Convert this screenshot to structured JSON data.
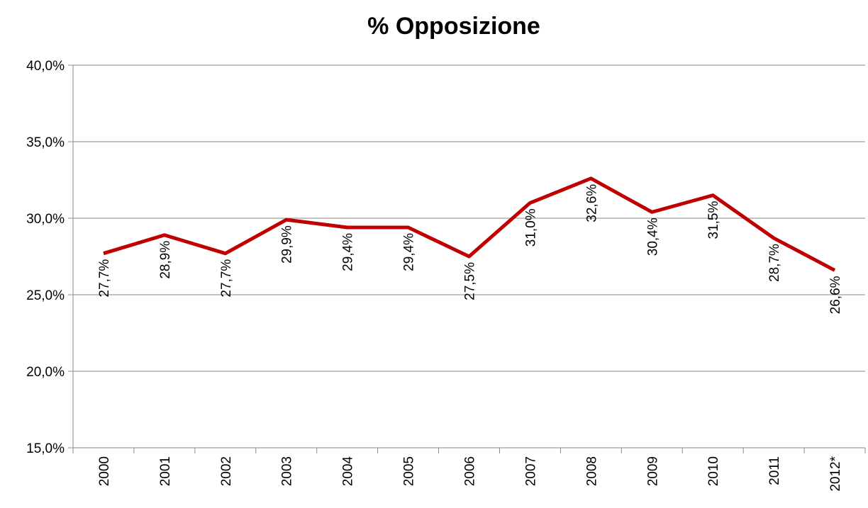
{
  "chart_data": {
    "type": "line",
    "title": "% Opposizione",
    "categories": [
      "2000",
      "2001",
      "2002",
      "2003",
      "2004",
      "2005",
      "2006",
      "2007",
      "2008",
      "2009",
      "2010",
      "2011",
      "2012*"
    ],
    "series": [
      {
        "name": "% Opposizione",
        "color": "#c00000",
        "values": [
          27.7,
          28.9,
          27.7,
          29.9,
          29.4,
          29.4,
          27.5,
          31.0,
          32.6,
          30.4,
          31.5,
          28.7,
          26.6
        ],
        "value_labels": [
          "27,7%",
          "28,9%",
          "27,7%",
          "29,9%",
          "29,4%",
          "29,4%",
          "27,5%",
          "31,0%",
          "32,6%",
          "30,4%",
          "31,5%",
          "28,7%",
          "26,6%"
        ]
      }
    ],
    "ylim": [
      15,
      40
    ],
    "yticks": [
      {
        "value": 15,
        "label": "15,0%"
      },
      {
        "value": 20,
        "label": "20,0%"
      },
      {
        "value": 25,
        "label": "25,0%"
      },
      {
        "value": 30,
        "label": "30,0%"
      },
      {
        "value": 35,
        "label": "35,0%"
      },
      {
        "value": 40,
        "label": "40,0%"
      }
    ],
    "grid": true
  }
}
